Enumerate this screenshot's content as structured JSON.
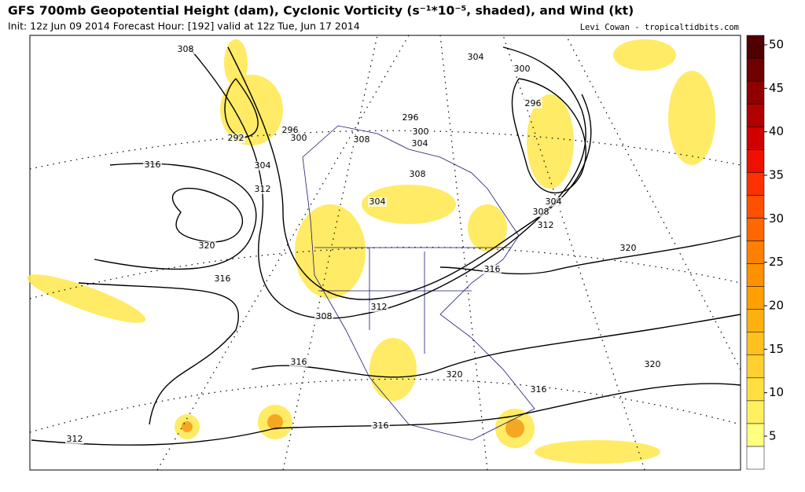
{
  "header": {
    "title": "GFS 700mb Geopotential Height (dam), Cyclonic Vorticity (s⁻¹*10⁻⁵, shaded), and Wind (kt)",
    "subtitle": "Init: 12z Jun 09 2014 Forecast Hour: [192] valid at 12z Tue, Jun 17 2014",
    "credit": "Levi Cowan - tropicaltidbits.com"
  },
  "colorbar": {
    "ticks": [
      5,
      10,
      15,
      20,
      25,
      30,
      35,
      40,
      45,
      50
    ]
  },
  "contour_labels": [
    308,
    304,
    300,
    296,
    296,
    292,
    300,
    296,
    300,
    304,
    308,
    316,
    304,
    312,
    308,
    304,
    304,
    308,
    312,
    320,
    316,
    316,
    320,
    308,
    312,
    316,
    320,
    320,
    316,
    316,
    312
  ]
}
